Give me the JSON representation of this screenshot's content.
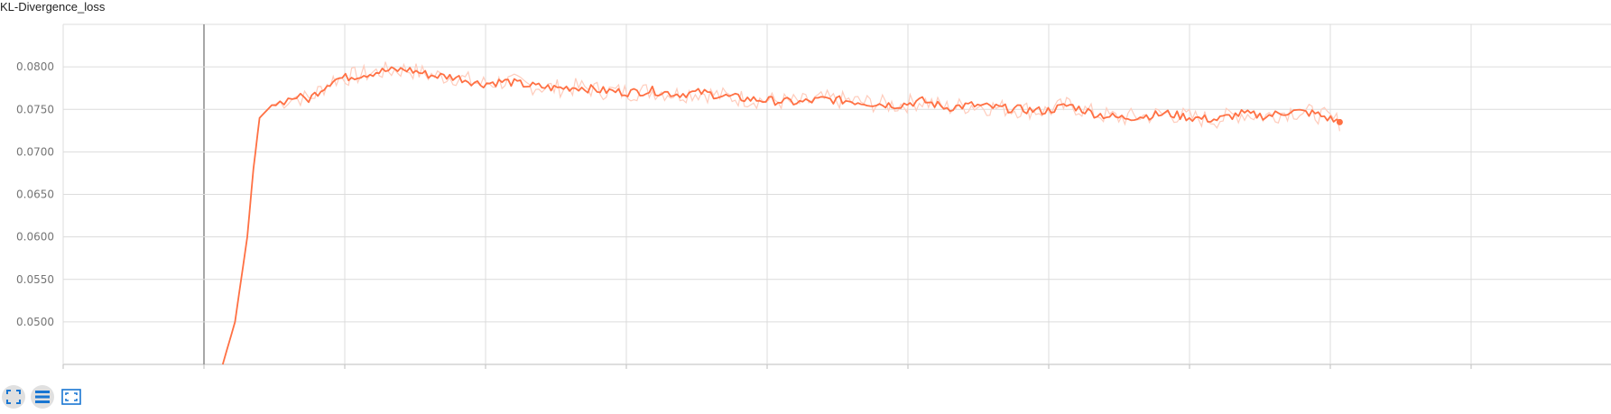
{
  "card": {
    "title": "KL-Divergence_loss"
  },
  "colors": {
    "smoothed_line": "#ff7043",
    "raw_line": "#ffccbc",
    "grid": "#dcdcdc",
    "axis_text": "#757575",
    "toolbar_icon": "#1976d2"
  },
  "toolbar": {
    "icons": [
      "fit-domain-icon",
      "log-scale-icon",
      "expand-icon"
    ]
  },
  "chart_data": {
    "type": "line",
    "title": "KL-Divergence_loss",
    "xlabel": "",
    "ylabel": "",
    "ylim": [
      0.045,
      0.085
    ],
    "xlim": [
      0,
      1000
    ],
    "x_tick_labels": [],
    "y_ticks": [
      0.05,
      0.055,
      0.06,
      0.065,
      0.07,
      0.075,
      0.08
    ],
    "y_tick_labels": [
      "0.0500",
      "0.0550",
      "0.0600",
      "0.0650",
      "0.0700",
      "0.0750",
      "0.0800"
    ],
    "grid": true,
    "legend": "none",
    "series": [
      {
        "style": "smoothed",
        "x": [
          130,
          140,
          150,
          155,
          160,
          170,
          180,
          190,
          200,
          220,
          240,
          260,
          280,
          300,
          320,
          340,
          360,
          380,
          400,
          420,
          440,
          460,
          480,
          500,
          520,
          540,
          560,
          580,
          600,
          620,
          640,
          660,
          680,
          700,
          720,
          740,
          760,
          780,
          800,
          820,
          840,
          860,
          880,
          900,
          920,
          940,
          960,
          980,
          1000,
          1020,
          1040
        ],
        "y": [
          0.045,
          0.05,
          0.06,
          0.068,
          0.074,
          0.0755,
          0.076,
          0.0765,
          0.0762,
          0.0785,
          0.079,
          0.0795,
          0.0797,
          0.079,
          0.0788,
          0.078,
          0.0783,
          0.0778,
          0.0775,
          0.0776,
          0.0772,
          0.077,
          0.0772,
          0.0768,
          0.077,
          0.0765,
          0.0762,
          0.076,
          0.0758,
          0.0762,
          0.076,
          0.0757,
          0.0755,
          0.076,
          0.0752,
          0.0755,
          0.0752,
          0.075,
          0.0748,
          0.0755,
          0.0745,
          0.074,
          0.0742,
          0.0745,
          0.074,
          0.0738,
          0.0745,
          0.0742,
          0.0748,
          0.0745,
          0.0735
        ]
      }
    ],
    "last_point": {
      "x": 1040,
      "y": 0.0735
    }
  }
}
